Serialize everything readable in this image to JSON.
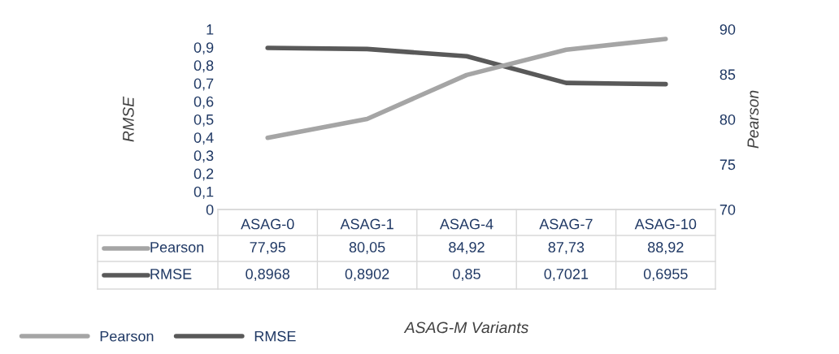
{
  "chart_data": {
    "type": "line",
    "annotations": [
      "ASAG-M Variants"
    ],
    "ylabel": "RMSE",
    "y2label": "Pearson",
    "categories": [
      "ASAG-0",
      "ASAG-1",
      "ASAG-4",
      "ASAG-7",
      "ASAG-10"
    ],
    "series": [
      {
        "name": "Pearson",
        "color": "#a5a5a5",
        "axis": "y2",
        "values": [
          77.95,
          80.05,
          84.92,
          87.73,
          88.92
        ],
        "value_labels": [
          "77,95",
          "80,05",
          "84,92",
          "87,73",
          "88,92"
        ]
      },
      {
        "name": "RMSE",
        "color": "#595959",
        "axis": "y",
        "values": [
          0.8968,
          0.8902,
          0.85,
          0.7021,
          0.6955
        ],
        "value_labels": [
          "0,8968",
          "0,8902",
          "0,85",
          "0,7021",
          "0,6955"
        ]
      }
    ],
    "ylim": [
      0,
      1
    ],
    "yticks": [
      0,
      {
        "value": 0.1,
        "label": "0,1"
      },
      {
        "value": 0.2,
        "label": "0,2"
      },
      {
        "value": 0.3,
        "label": "0,3"
      },
      {
        "value": 0.4,
        "label": "0,4"
      },
      {
        "value": 0.5,
        "label": "0,5"
      },
      {
        "value": 0.6,
        "label": "0,6"
      },
      {
        "value": 0.7,
        "label": "0,7"
      },
      {
        "value": 0.8,
        "label": "0,8"
      },
      {
        "value": 0.9,
        "label": "0,9"
      },
      1
    ],
    "y2lim": [
      70,
      90
    ],
    "y2ticks": [
      70,
      75,
      80,
      85,
      90
    ],
    "grid": false,
    "legend": "bottom left",
    "marker": "none",
    "line_style": "solid"
  }
}
